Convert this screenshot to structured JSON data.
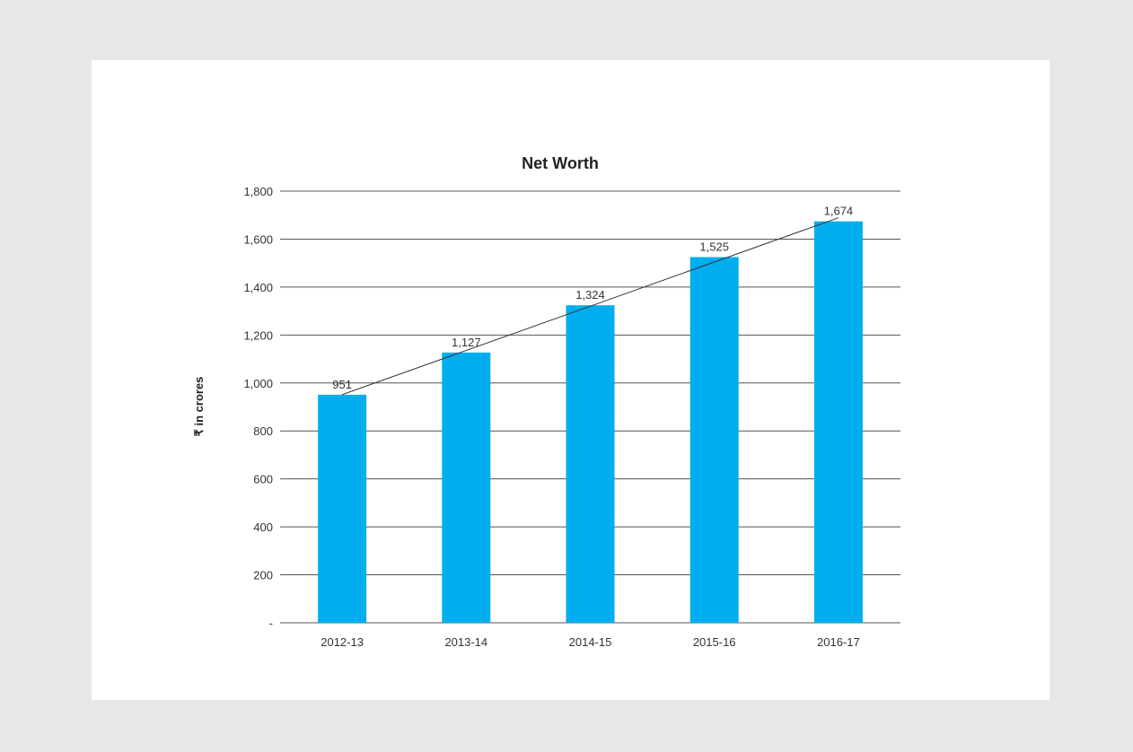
{
  "chart_data": {
    "type": "bar",
    "title": "Net Worth",
    "xlabel": "",
    "ylabel": "₹ in crores",
    "categories": [
      "2012-13",
      "2013-14",
      "2014-15",
      "2015-16",
      "2016-17"
    ],
    "values": [
      951,
      1127,
      1324,
      1525,
      1674
    ],
    "value_labels": [
      "951",
      "1,127",
      "1,324",
      "1,525",
      "1,674"
    ],
    "ylim": [
      0,
      1800
    ],
    "yticks": [
      0,
      200,
      400,
      600,
      800,
      1000,
      1200,
      1400,
      1600,
      1800
    ],
    "ytick_labels": [
      "-",
      "200",
      "400",
      "600",
      "800",
      "1,000",
      "1,200",
      "1,400",
      "1,600",
      "1,800"
    ],
    "trendline": true,
    "grid": "horizontal",
    "legend": "none",
    "bar_color": "#00aeef"
  }
}
